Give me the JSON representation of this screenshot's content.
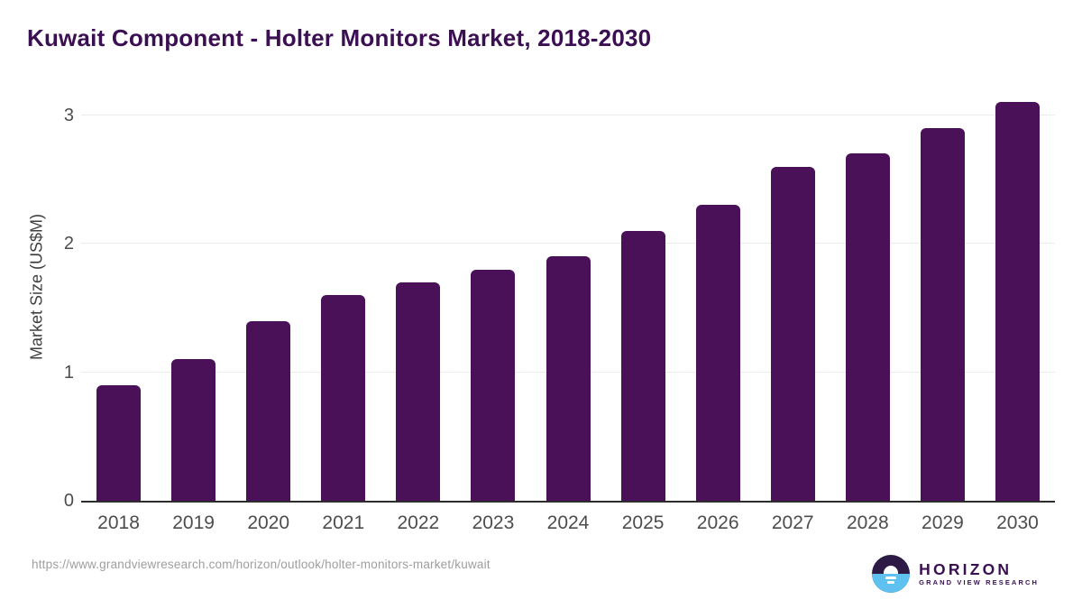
{
  "title": "Kuwait Component - Holter Monitors Market, 2018-2030",
  "chart_data": {
    "type": "bar",
    "title": "Kuwait Component - Holter Monitors Market, 2018-2030",
    "categories": [
      "2018",
      "2019",
      "2020",
      "2021",
      "2022",
      "2023",
      "2024",
      "2025",
      "2026",
      "2027",
      "2028",
      "2029",
      "2030"
    ],
    "values": [
      0.9,
      1.1,
      1.4,
      1.6,
      1.7,
      1.8,
      1.9,
      2.1,
      2.3,
      2.6,
      2.7,
      2.9,
      3.1
    ],
    "xlabel": "",
    "ylabel": "Market Size (US$M)",
    "ylim": [
      0,
      3.2
    ],
    "yticks": [
      0,
      1,
      2,
      3
    ],
    "grid": "horizontal-lines-at-1-2-3",
    "legend": "none",
    "bar_corner_radius": "rounded-top"
  },
  "footer": {
    "source_url": "https://www.grandviewresearch.com/horizon/outlook/holter-monitors-market/kuwait",
    "logo": {
      "brand": "HORIZON",
      "subbrand": "GRAND VIEW RESEARCH",
      "icon": "horizon-sunrise-icon"
    }
  },
  "colors": {
    "page_bg": "#ffffff",
    "title_color": "#3b1053",
    "bar_color": "#4a1158",
    "axis_color": "#2d2d2d",
    "grid_color": "#ececec",
    "tick_color": "#4d4d4d",
    "url_color": "#9e9e9e",
    "logo_dark": "#2d1a45",
    "logo_blue": "#5ec1ef"
  }
}
